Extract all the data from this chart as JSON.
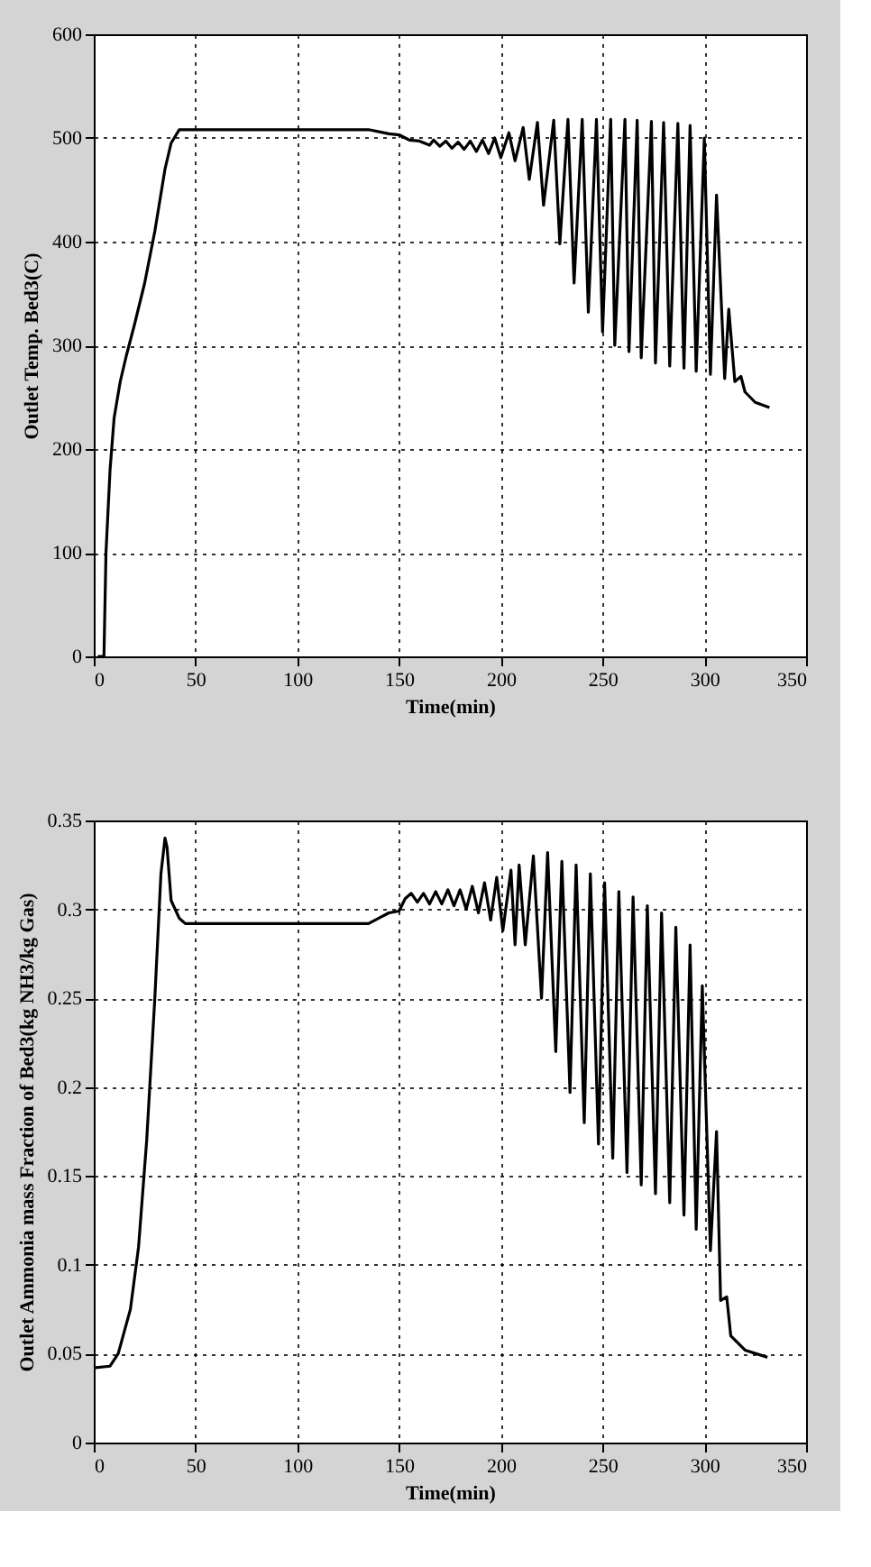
{
  "chart_data": [
    {
      "type": "line",
      "xlabel": "Time(min)",
      "ylabel": "Outlet Temp. Bed3(C)",
      "xlim": [
        0,
        350
      ],
      "xticks": [
        0,
        50,
        100,
        150,
        200,
        250,
        300,
        350
      ],
      "ylim": [
        0,
        600
      ],
      "yticks": [
        0,
        100,
        200,
        300,
        400,
        500,
        600
      ],
      "grid": true,
      "line_style": "solid",
      "series": [
        {
          "color": "#000000",
          "x": [
            2,
            5,
            6,
            8,
            10,
            13,
            16,
            20,
            25,
            30,
            35,
            38,
            42,
            50,
            100,
            135,
            145,
            150,
            155,
            160,
            165,
            167,
            170,
            173,
            176,
            179,
            182,
            185,
            188,
            191,
            194,
            197,
            200,
            204,
            207,
            211,
            214,
            218,
            221,
            226,
            229,
            233,
            236,
            240,
            243,
            247,
            250,
            254,
            256,
            261,
            263,
            267,
            269,
            274,
            276,
            280,
            283,
            287,
            290,
            293,
            296,
            300,
            303,
            306,
            310,
            312,
            315,
            318,
            320,
            325,
            332
          ],
          "values": [
            0,
            0,
            100,
            180,
            230,
            265,
            290,
            320,
            360,
            410,
            470,
            495,
            508,
            508,
            508,
            508,
            504,
            503,
            498,
            497,
            493,
            498,
            492,
            497,
            490,
            496,
            489,
            497,
            487,
            498,
            485,
            500,
            481,
            505,
            478,
            510,
            460,
            515,
            435,
            517,
            398,
            518,
            360,
            518,
            332,
            518,
            313,
            518,
            300,
            518,
            294,
            517,
            288,
            516,
            283,
            515,
            280,
            514,
            278,
            512,
            275,
            500,
            272,
            445,
            268,
            335,
            265,
            270,
            255,
            245,
            240
          ]
        }
      ]
    },
    {
      "type": "line",
      "xlabel": "Time(min)",
      "ylabel": "Outlet Ammonia mass Fraction of Bed3(kg NH3/kg Gas)",
      "xlim": [
        0,
        350
      ],
      "xticks": [
        0,
        50,
        100,
        150,
        200,
        250,
        300,
        350
      ],
      "ylim": [
        0,
        0.35
      ],
      "yticks": [
        0,
        0.05,
        0.1,
        0.15,
        0.2,
        0.25,
        0.3,
        0.35
      ],
      "grid": true,
      "line_style": "solid",
      "series": [
        {
          "color": "#000000",
          "x": [
            0,
            8,
            12,
            18,
            22,
            26,
            30,
            33,
            35,
            36,
            38,
            42,
            45,
            135,
            140,
            145,
            150,
            153,
            156,
            159,
            162,
            165,
            168,
            171,
            174,
            177,
            180,
            183,
            186,
            189,
            192,
            195,
            198,
            201,
            205,
            207,
            209,
            212,
            216,
            220,
            223,
            227,
            230,
            234,
            237,
            241,
            244,
            248,
            251,
            255,
            258,
            262,
            265,
            269,
            272,
            276,
            279,
            283,
            286,
            290,
            293,
            296,
            299,
            303,
            306,
            308,
            311,
            313,
            320,
            331
          ],
          "values": [
            0.042,
            0.043,
            0.05,
            0.075,
            0.11,
            0.17,
            0.25,
            0.32,
            0.34,
            0.335,
            0.305,
            0.295,
            0.292,
            0.292,
            0.295,
            0.298,
            0.299,
            0.306,
            0.309,
            0.304,
            0.309,
            0.303,
            0.31,
            0.303,
            0.311,
            0.302,
            0.311,
            0.3,
            0.313,
            0.298,
            0.315,
            0.294,
            0.318,
            0.288,
            0.322,
            0.28,
            0.325,
            0.28,
            0.33,
            0.25,
            0.332,
            0.22,
            0.327,
            0.197,
            0.325,
            0.18,
            0.32,
            0.168,
            0.315,
            0.16,
            0.31,
            0.152,
            0.307,
            0.145,
            0.302,
            0.14,
            0.298,
            0.135,
            0.29,
            0.128,
            0.28,
            0.12,
            0.257,
            0.108,
            0.175,
            0.08,
            0.082,
            0.06,
            0.052,
            0.048
          ]
        }
      ]
    }
  ]
}
